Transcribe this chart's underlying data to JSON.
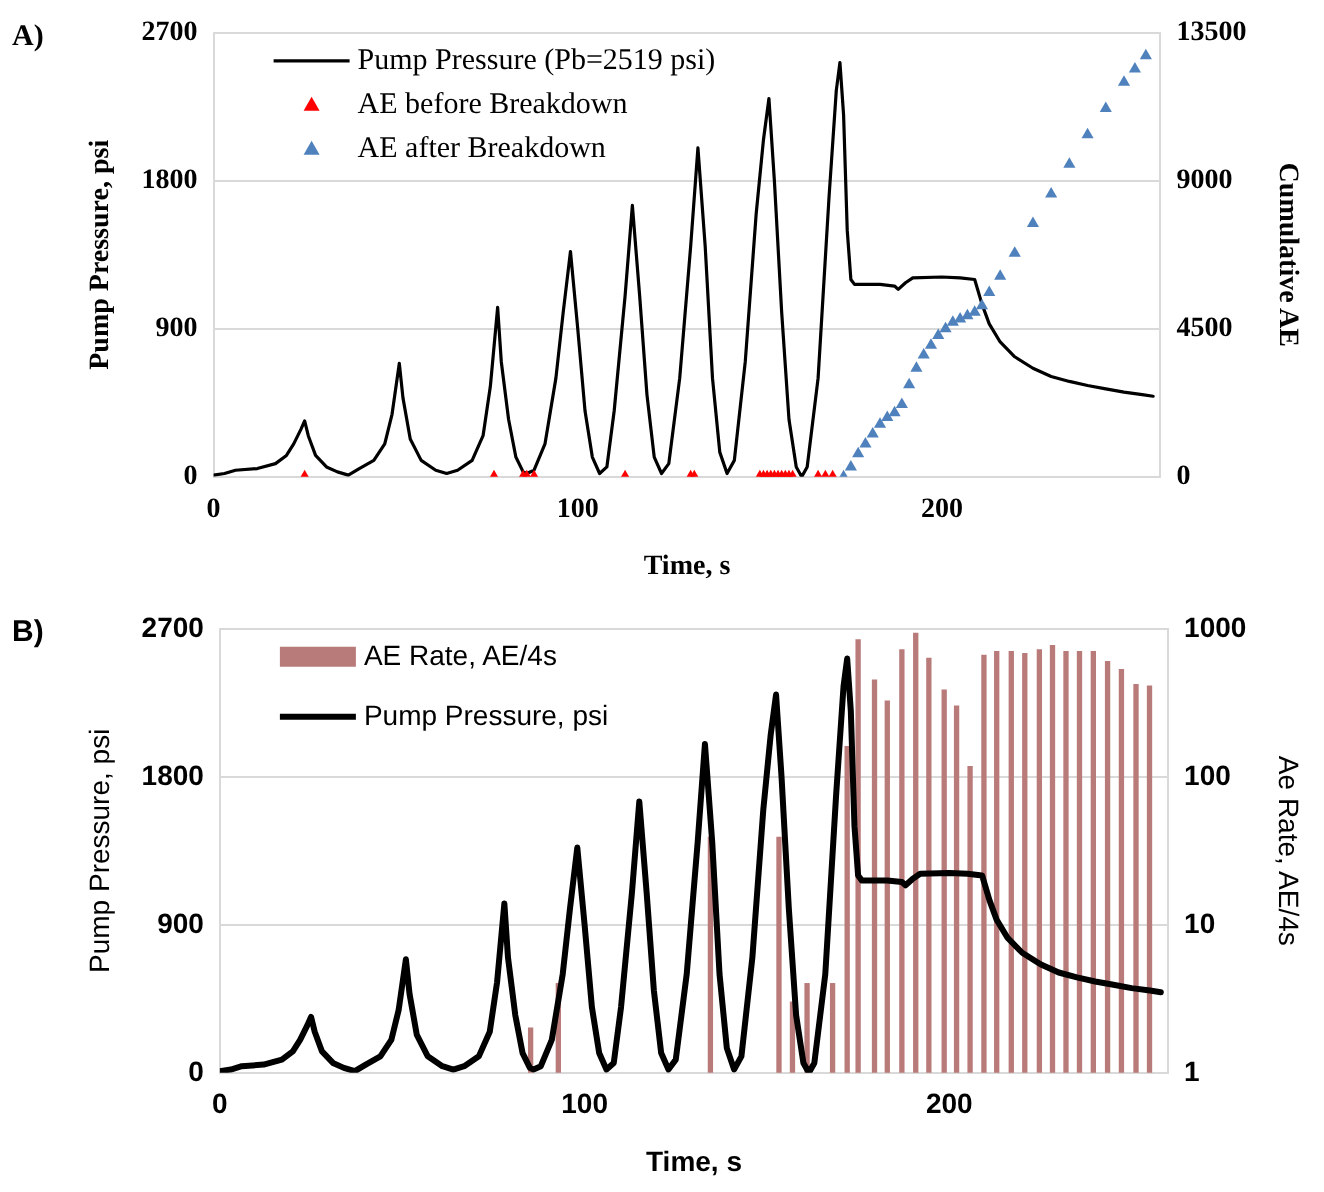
{
  "chart_data": [
    {
      "type": "line",
      "title": "A)",
      "xlabel": "Time, s",
      "ylabel": "Pump Pressure, psi",
      "y2label": "Cumulative AE",
      "xlim": [
        0,
        260
      ],
      "xticks": [
        0,
        100,
        200
      ],
      "ylim": [
        0,
        2700
      ],
      "yticks": [
        0,
        900,
        1800,
        2700
      ],
      "y2lim": [
        0,
        13500
      ],
      "y2ticks": [
        0,
        4500,
        9000,
        13500
      ],
      "grid": "y",
      "legend": "top left",
      "series": [
        {
          "name": "Pump Pressure (Pb=2519 psi)",
          "color": "#000000",
          "x": [
            0,
            3,
            6,
            12,
            17,
            20,
            22,
            24,
            25,
            26,
            28,
            31,
            34,
            37,
            40,
            44,
            47,
            49,
            51,
            52,
            54,
            57,
            61,
            64,
            67,
            71,
            74,
            76,
            78,
            79,
            81,
            83,
            85,
            86,
            88,
            91,
            94,
            96,
            98,
            100,
            102,
            104,
            106,
            108,
            110,
            113,
            115,
            117,
            119,
            121,
            123,
            125,
            128,
            131,
            133,
            135,
            137,
            139,
            141,
            143,
            146,
            149,
            151,
            152.5,
            154,
            156,
            158,
            160,
            161.5,
            163,
            166,
            169,
            171,
            172,
            173,
            174,
            175,
            176,
            178,
            183,
            187,
            188,
            190,
            192,
            200,
            205,
            209,
            211,
            213,
            216,
            220,
            225,
            230,
            235,
            240,
            245,
            250,
            255,
            258
          ],
          "values": [
            10,
            20,
            40,
            50,
            80,
            130,
            200,
            290,
            340,
            250,
            130,
            60,
            30,
            10,
            50,
            100,
            200,
            380,
            690,
            480,
            230,
            100,
            40,
            20,
            40,
            100,
            250,
            550,
            1030,
            700,
            350,
            120,
            30,
            20,
            40,
            200,
            600,
            1000,
            1370,
            900,
            400,
            120,
            20,
            60,
            400,
            1100,
            1650,
            1100,
            500,
            120,
            20,
            80,
            600,
            1400,
            2000,
            1400,
            600,
            150,
            20,
            100,
            700,
            1600,
            2050,
            2300,
            1800,
            1000,
            350,
            60,
            0,
            60,
            600,
            1700,
            2350,
            2519,
            2200,
            1500,
            1200,
            1170,
            1170,
            1170,
            1160,
            1140,
            1180,
            1210,
            1215,
            1210,
            1200,
            1050,
            930,
            820,
            730,
            660,
            610,
            580,
            555,
            535,
            515,
            500,
            490
          ]
        },
        {
          "name": "AE before Breakdown",
          "type": "scatter",
          "marker": "triangle",
          "color": "#ff0000",
          "x": [
            25,
            77,
            85,
            86,
            88,
            113,
            131,
            132,
            150,
            151,
            152,
            153,
            154,
            155,
            156,
            157,
            158,
            159,
            166,
            168,
            170
          ],
          "values": [
            0,
            0,
            0,
            0,
            0,
            0,
            0,
            0,
            0,
            0,
            0,
            0,
            0,
            0,
            0,
            0,
            0,
            0,
            0,
            0,
            0
          ]
        },
        {
          "name": "AE after Breakdown",
          "type": "scatter",
          "marker": "triangle",
          "color": "#4f81bd",
          "axis": "y2",
          "x": [
            173,
            175,
            177,
            179,
            181,
            183,
            185,
            187,
            189,
            191,
            193,
            195,
            197,
            199,
            201,
            203,
            205,
            207,
            209,
            211,
            213,
            216,
            220,
            225,
            230,
            235,
            240,
            245,
            250,
            253,
            256
          ],
          "values": [
            0,
            300,
            700,
            1000,
            1300,
            1600,
            1800,
            1950,
            2200,
            2800,
            3300,
            3700,
            4000,
            4300,
            4500,
            4700,
            4800,
            4900,
            5000,
            5200,
            5600,
            6100,
            6800,
            7700,
            8600,
            9500,
            10400,
            11200,
            12000,
            12400,
            12800
          ]
        }
      ]
    },
    {
      "type": "line",
      "title": "B)",
      "xlabel": "Time, s",
      "ylabel": "Pump Pressure, psi",
      "y2label": "Ae Rate, AE/4s",
      "xlim": [
        0,
        260
      ],
      "xticks": [
        0,
        100,
        200
      ],
      "ylim": [
        0,
        2700
      ],
      "yticks": [
        0,
        900,
        1800,
        2700
      ],
      "y2lim": [
        1,
        1000
      ],
      "y2ticks": [
        1,
        10,
        100,
        1000
      ],
      "log": "y2",
      "grid": "y",
      "legend": "top left",
      "series": [
        {
          "name": "AE Rate, AE/4s",
          "type": "bar",
          "color": "#b97b79",
          "axis": "y2",
          "x": [
            85.2,
            92.8,
            134.5,
            153.3,
            157,
            161,
            168,
            172,
            175,
            179.5,
            183,
            187,
            190.8,
            194.4,
            198.6,
            202,
            205.7,
            209.5,
            213,
            217,
            220.7,
            224.7,
            228.3,
            232,
            235.7,
            239.5,
            243.4,
            247.2,
            251.2,
            254.9
          ],
          "values": [
            2,
            4,
            39,
            39,
            3,
            4,
            4,
            160,
            840,
            450,
            325,
            720,
            930,
            630,
            385,
            300,
            117,
            660,
            700,
            700,
            680,
            720,
            770,
            700,
            700,
            700,
            600,
            530,
            420,
            410
          ]
        },
        {
          "name": "Pump Pressure, psi",
          "color": "#000000",
          "x": [
            0,
            3,
            6,
            12,
            17,
            20,
            22,
            24,
            25,
            26,
            28,
            31,
            34,
            37,
            40,
            44,
            47,
            49,
            51,
            52,
            54,
            57,
            61,
            64,
            67,
            71,
            74,
            76,
            78,
            79,
            81,
            83,
            85,
            86,
            88,
            91,
            94,
            96,
            98,
            100,
            102,
            104,
            106,
            108,
            110,
            113,
            115,
            117,
            119,
            121,
            123,
            125,
            128,
            131,
            133,
            135,
            137,
            139,
            141,
            143,
            146,
            149,
            151,
            152.5,
            154,
            156,
            158,
            160,
            161.5,
            163,
            166,
            169,
            171,
            172,
            173,
            174,
            175,
            176,
            178,
            183,
            187,
            188,
            190,
            192,
            200,
            205,
            209,
            211,
            213,
            216,
            220,
            225,
            230,
            235,
            240,
            245,
            250,
            255,
            258
          ],
          "values": [
            10,
            20,
            40,
            50,
            80,
            130,
            200,
            290,
            340,
            250,
            130,
            60,
            30,
            10,
            50,
            100,
            200,
            380,
            690,
            480,
            230,
            100,
            40,
            20,
            40,
            100,
            250,
            550,
            1030,
            700,
            350,
            120,
            30,
            20,
            40,
            200,
            600,
            1000,
            1370,
            900,
            400,
            120,
            20,
            60,
            400,
            1100,
            1650,
            1100,
            500,
            120,
            20,
            80,
            600,
            1400,
            2000,
            1400,
            600,
            150,
            20,
            100,
            700,
            1600,
            2050,
            2300,
            1800,
            1000,
            350,
            60,
            0,
            60,
            600,
            1700,
            2350,
            2519,
            2200,
            1500,
            1200,
            1170,
            1170,
            1170,
            1160,
            1140,
            1180,
            1210,
            1215,
            1210,
            1200,
            1050,
            930,
            820,
            730,
            660,
            610,
            580,
            555,
            535,
            515,
            500,
            490
          ]
        }
      ]
    }
  ]
}
